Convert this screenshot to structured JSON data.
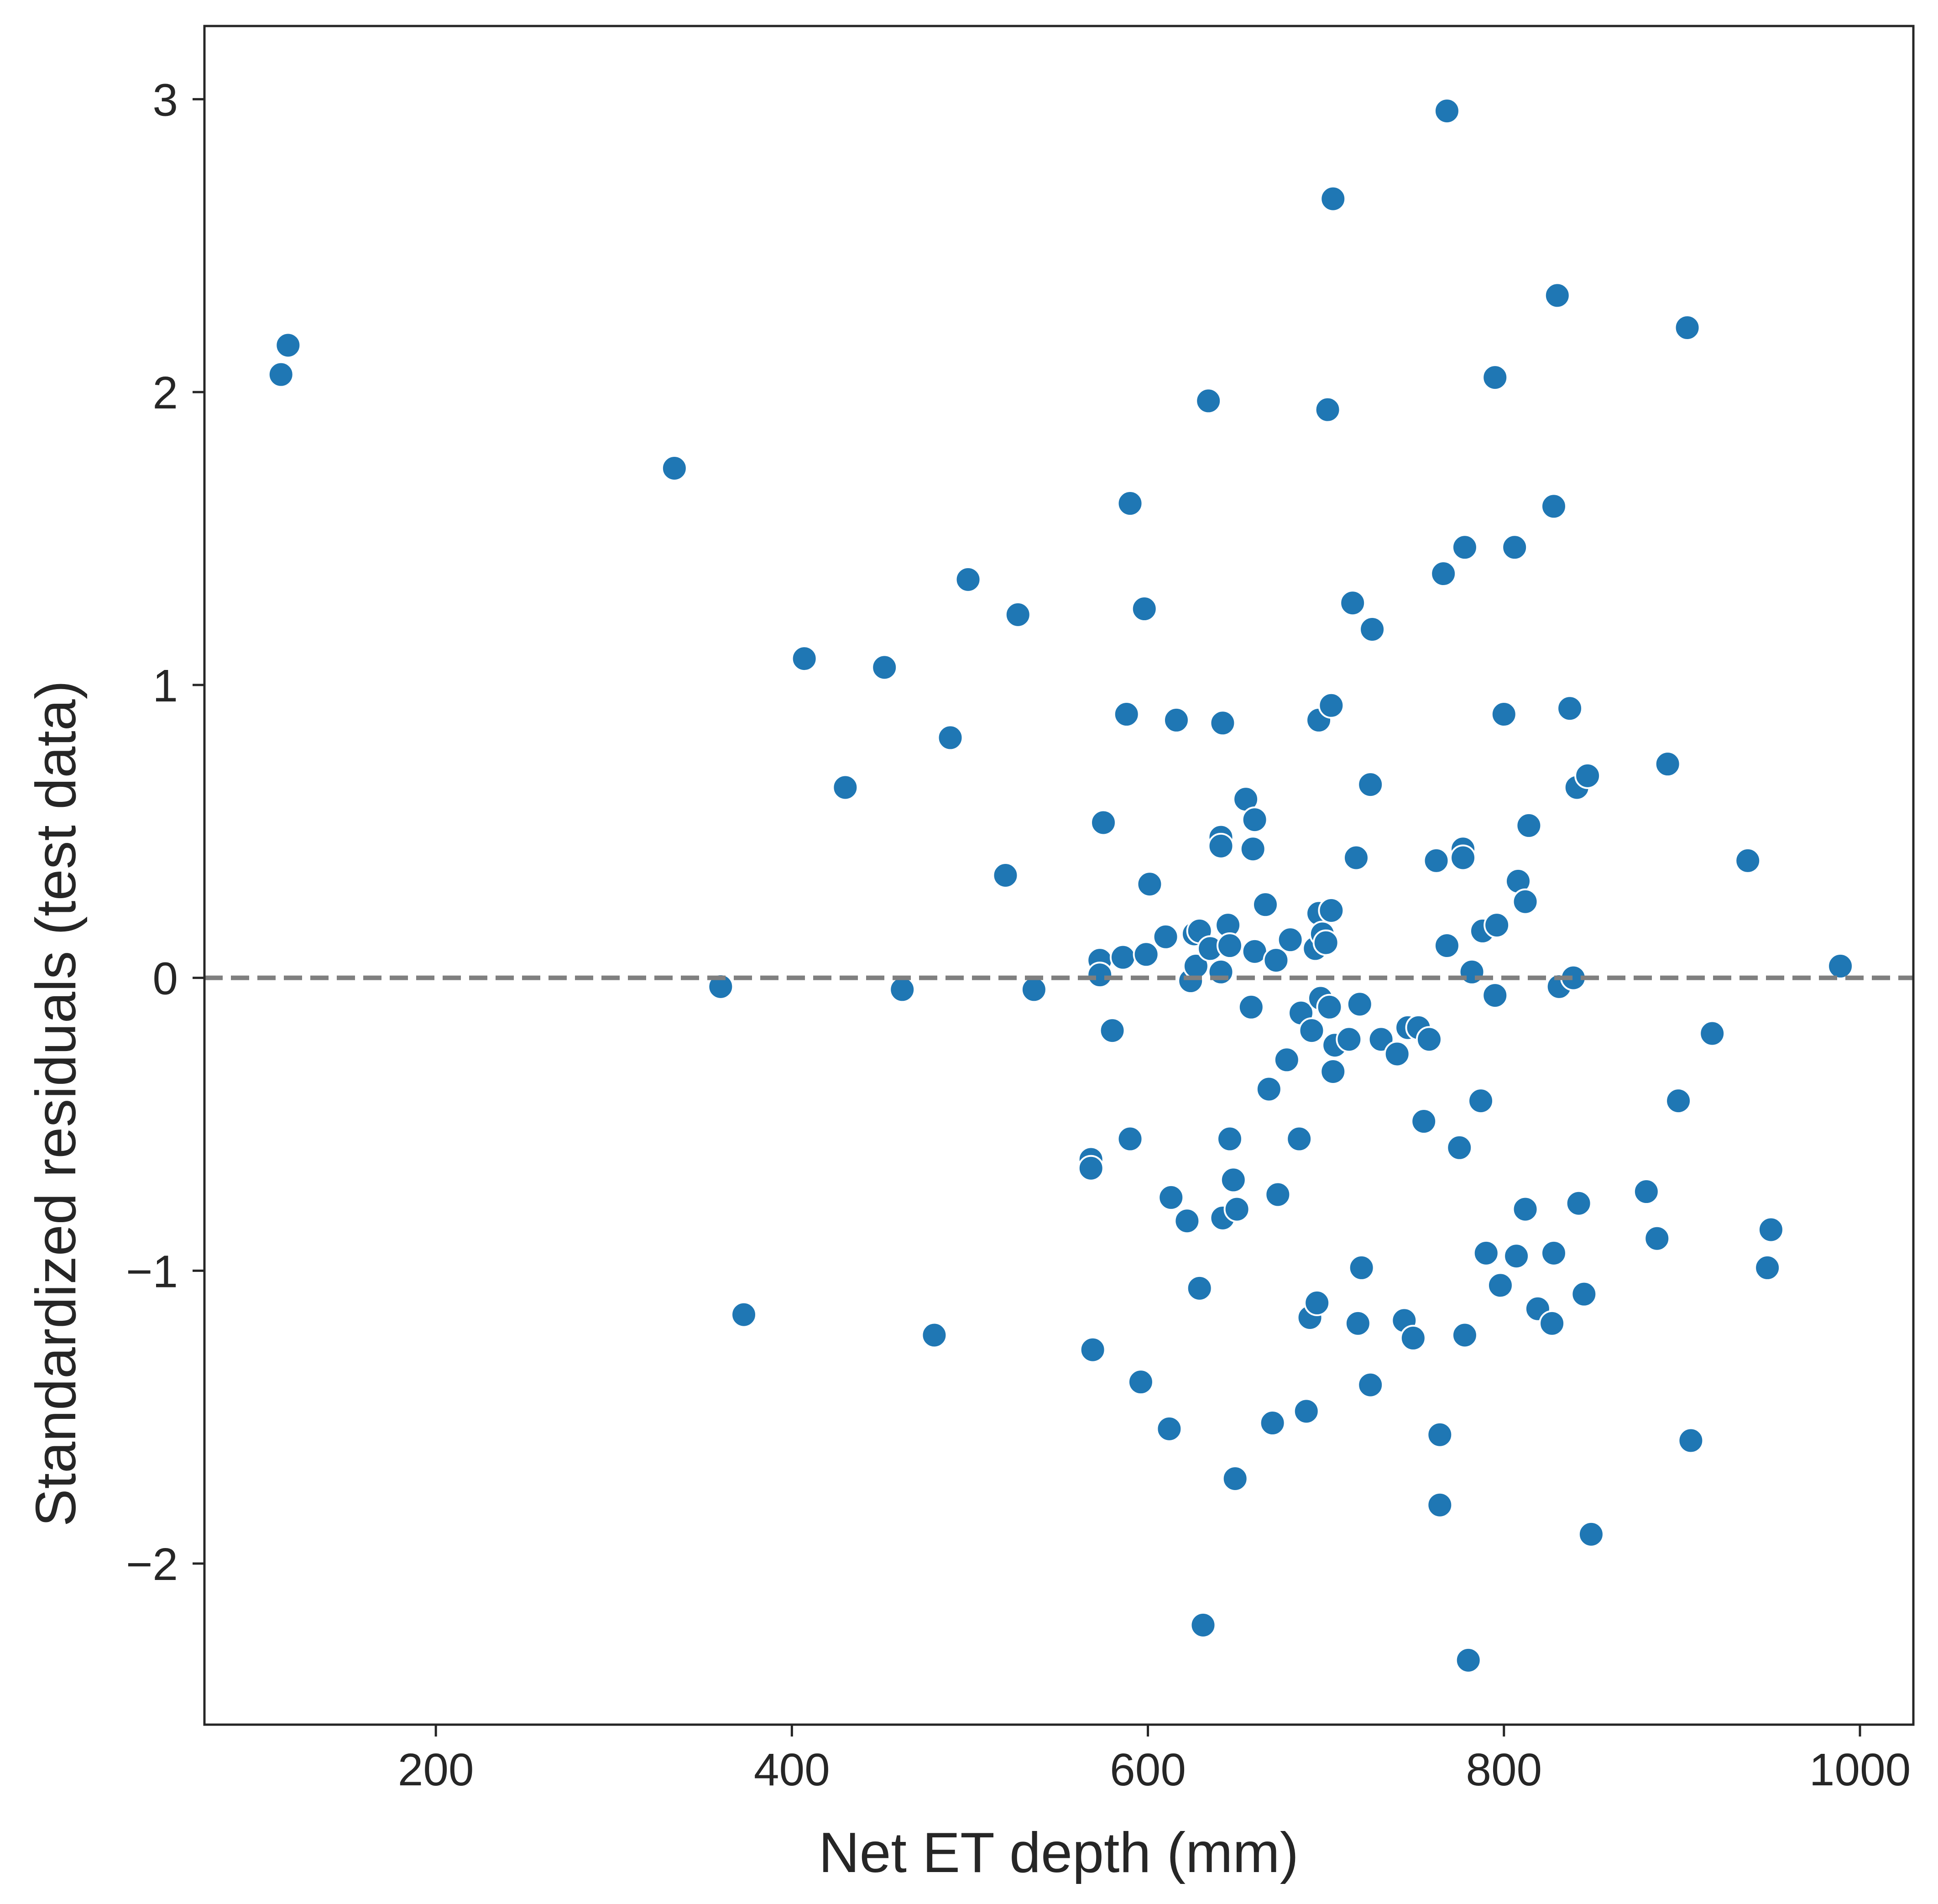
{
  "chart_data": {
    "type": "scatter",
    "title": "",
    "xlabel": "Net ET depth (mm)",
    "ylabel": "Standardized residuals (test data)",
    "xlim": [
      70,
      1030
    ],
    "ylim": [
      -2.55,
      3.25
    ],
    "xticks": [
      200,
      400,
      600,
      800,
      1000
    ],
    "xtick_labels": [
      "200",
      "400",
      "600",
      "800",
      "1000"
    ],
    "yticks": [
      -2,
      -1,
      0,
      1,
      2,
      3
    ],
    "ytick_labels": [
      "−2",
      "−1",
      "0",
      "1",
      "2",
      "3"
    ],
    "reference_line": {
      "y": 0,
      "style": "dashed",
      "color": "#7f7f7f"
    },
    "grid": false,
    "marker_color": "#1f77b4",
    "marker_edge_color": "#ffffff",
    "series": [
      {
        "points": [
          [
            113,
            2.06
          ],
          [
            117,
            2.16
          ],
          [
            334,
            1.74
          ],
          [
            360,
            -0.03
          ],
          [
            373,
            -1.15
          ],
          [
            407,
            1.09
          ],
          [
            430,
            0.65
          ],
          [
            452,
            1.06
          ],
          [
            462,
            -0.04
          ],
          [
            480,
            -1.22
          ],
          [
            489,
            0.82
          ],
          [
            499,
            1.36
          ],
          [
            520,
            0.35
          ],
          [
            527,
            1.24
          ],
          [
            536,
            -0.04
          ],
          [
            568,
            -0.62
          ],
          [
            568,
            -0.65
          ],
          [
            569,
            -1.27
          ],
          [
            573,
            0.06
          ],
          [
            573,
            0.01
          ],
          [
            575,
            0.53
          ],
          [
            580,
            -0.18
          ],
          [
            586,
            0.07
          ],
          [
            588,
            0.9
          ],
          [
            590,
            1.62
          ],
          [
            590,
            -0.55
          ],
          [
            596,
            -1.38
          ],
          [
            598,
            1.26
          ],
          [
            599,
            0.08
          ],
          [
            601,
            0.32
          ],
          [
            610,
            0.14
          ],
          [
            612,
            -1.54
          ],
          [
            613,
            -0.75
          ],
          [
            616,
            0.88
          ],
          [
            622,
            -0.83
          ],
          [
            624,
            -0.01
          ],
          [
            626,
            0.15
          ],
          [
            627,
            0.04
          ],
          [
            629,
            0.16
          ],
          [
            629,
            -1.06
          ],
          [
            631,
            -2.21
          ],
          [
            634,
            1.97
          ],
          [
            635,
            0.1
          ],
          [
            641,
            0.48
          ],
          [
            641,
            0.45
          ],
          [
            641,
            0.02
          ],
          [
            642,
            0.87
          ],
          [
            642,
            -0.82
          ],
          [
            645,
            0.18
          ],
          [
            646,
            0.11
          ],
          [
            646,
            -0.55
          ],
          [
            648,
            -0.69
          ],
          [
            649,
            -1.71
          ],
          [
            650,
            -0.79
          ],
          [
            655,
            0.61
          ],
          [
            658,
            -0.1
          ],
          [
            659,
            0.44
          ],
          [
            660,
            0.54
          ],
          [
            660,
            0.09
          ],
          [
            666,
            0.25
          ],
          [
            668,
            -0.38
          ],
          [
            670,
            -1.52
          ],
          [
            672,
            0.06
          ],
          [
            673,
            -0.74
          ],
          [
            678,
            -0.28
          ],
          [
            680,
            0.13
          ],
          [
            685,
            -0.55
          ],
          [
            686,
            -0.12
          ],
          [
            689,
            -1.48
          ],
          [
            691,
            -1.16
          ],
          [
            692,
            -0.18
          ],
          [
            694,
            0.1
          ],
          [
            695,
            -1.11
          ],
          [
            696,
            0.88
          ],
          [
            696,
            0.22
          ],
          [
            697,
            -0.07
          ],
          [
            698,
            0.15
          ],
          [
            700,
            0.12
          ],
          [
            701,
            1.94
          ],
          [
            702,
            -0.1
          ],
          [
            703,
            0.93
          ],
          [
            703,
            0.23
          ],
          [
            704,
            2.66
          ],
          [
            704,
            -0.32
          ],
          [
            705,
            -0.23
          ],
          [
            713,
            -0.21
          ],
          [
            715,
            1.28
          ],
          [
            717,
            0.41
          ],
          [
            718,
            -1.18
          ],
          [
            719,
            -0.09
          ],
          [
            720,
            -0.99
          ],
          [
            725,
            0.66
          ],
          [
            725,
            -1.39
          ],
          [
            726,
            1.19
          ],
          [
            731,
            -0.21
          ],
          [
            740,
            -0.26
          ],
          [
            744,
            -1.17
          ],
          [
            746,
            -0.17
          ],
          [
            749,
            -1.23
          ],
          [
            752,
            -0.17
          ],
          [
            755,
            -0.49
          ],
          [
            758,
            -0.21
          ],
          [
            762,
            0.4
          ],
          [
            764,
            -1.56
          ],
          [
            764,
            -1.8
          ],
          [
            766,
            1.38
          ],
          [
            768,
            2.96
          ],
          [
            768,
            0.11
          ],
          [
            775,
            -0.58
          ],
          [
            777,
            0.44
          ],
          [
            777,
            0.41
          ],
          [
            778,
            1.47
          ],
          [
            778,
            -1.22
          ],
          [
            780,
            -2.33
          ],
          [
            782,
            0.02
          ],
          [
            787,
            -0.42
          ],
          [
            788,
            0.16
          ],
          [
            790,
            -0.94
          ],
          [
            795,
            2.05
          ],
          [
            795,
            -0.06
          ],
          [
            796,
            0.18
          ],
          [
            798,
            -1.05
          ],
          [
            800,
            0.9
          ],
          [
            806,
            1.47
          ],
          [
            807,
            -0.95
          ],
          [
            808,
            0.33
          ],
          [
            812,
            0.26
          ],
          [
            812,
            -0.79
          ],
          [
            814,
            0.52
          ],
          [
            819,
            -1.13
          ],
          [
            827,
            -1.18
          ],
          [
            828,
            1.61
          ],
          [
            828,
            -0.94
          ],
          [
            830,
            2.33
          ],
          [
            831,
            -0.03
          ],
          [
            837,
            0.92
          ],
          [
            839,
            0.0
          ],
          [
            841,
            0.65
          ],
          [
            842,
            -0.77
          ],
          [
            845,
            -1.08
          ],
          [
            847,
            0.69
          ],
          [
            849,
            -1.9
          ],
          [
            880,
            -0.73
          ],
          [
            886,
            -0.89
          ],
          [
            892,
            0.73
          ],
          [
            898,
            -0.42
          ],
          [
            903,
            2.22
          ],
          [
            905,
            -1.58
          ],
          [
            917,
            -0.19
          ],
          [
            937,
            0.4
          ],
          [
            948,
            -0.99
          ],
          [
            950,
            -0.86
          ],
          [
            989,
            0.04
          ]
        ]
      }
    ]
  }
}
